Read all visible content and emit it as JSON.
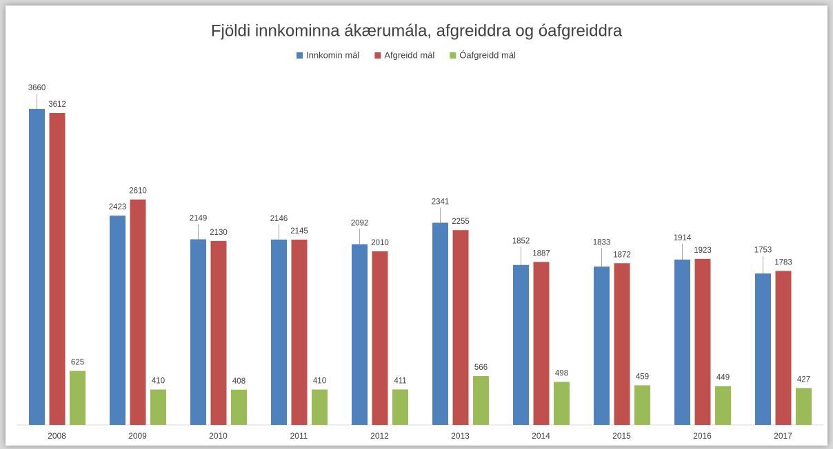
{
  "chart_data": {
    "type": "bar",
    "title": "Fjöldi innkominna ákærumála, afgreiddra og óafgreiddra",
    "categories": [
      "2008",
      "2009",
      "2010",
      "2011",
      "2012",
      "2013",
      "2014",
      "2015",
      "2016",
      "2017"
    ],
    "series": [
      {
        "name": "Innkomin mál",
        "color": "#4f81bd",
        "values": [
          3660,
          2423,
          2149,
          2146,
          2092,
          2341,
          1852,
          1833,
          1914,
          1753
        ]
      },
      {
        "name": "Afgreidd mál",
        "color": "#c0504d",
        "values": [
          3612,
          2610,
          2130,
          2145,
          2010,
          2255,
          1887,
          1872,
          1923,
          1783
        ]
      },
      {
        "name": "Óafgreidd mál",
        "color": "#9bbb59",
        "values": [
          625,
          410,
          408,
          410,
          411,
          566,
          498,
          459,
          449,
          427
        ]
      }
    ],
    "legend": "top"
  }
}
